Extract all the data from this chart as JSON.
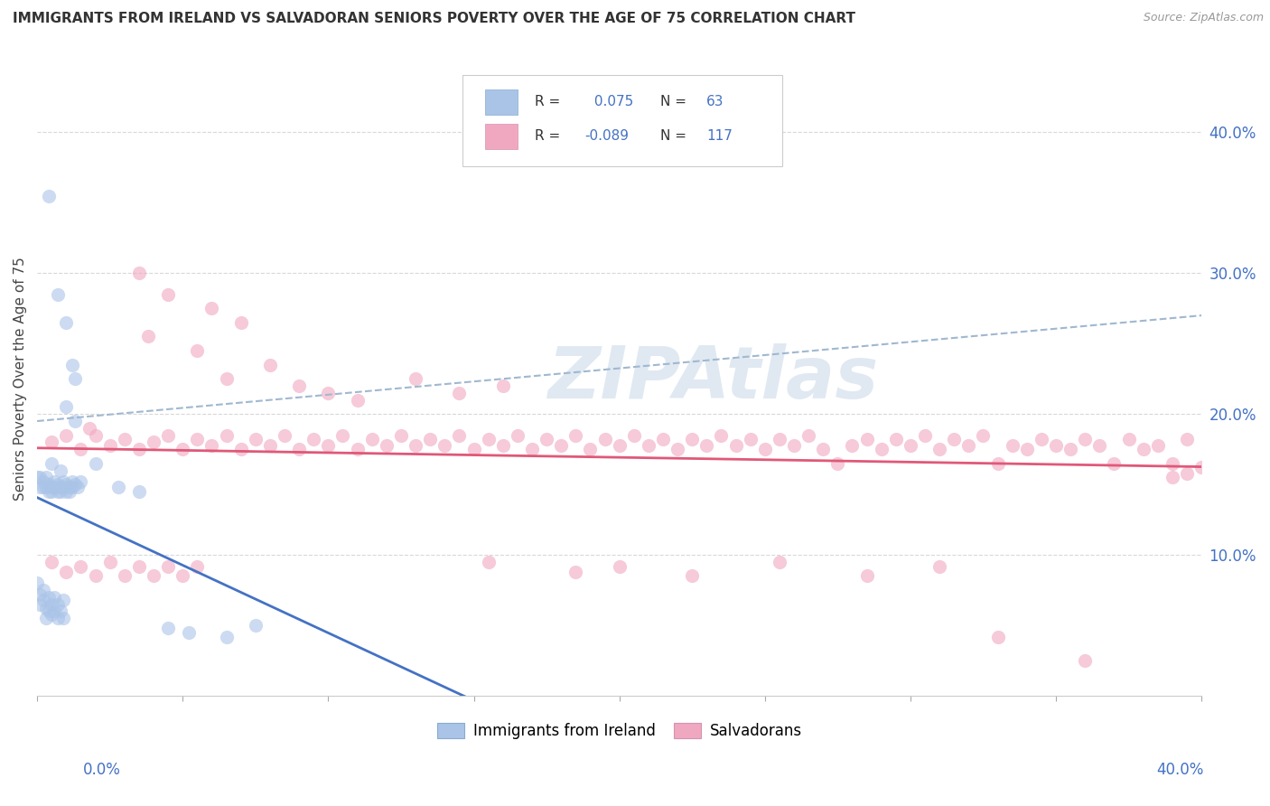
{
  "title": "IMMIGRANTS FROM IRELAND VS SALVADORAN SENIORS POVERTY OVER THE AGE OF 75 CORRELATION CHART",
  "source": "Source: ZipAtlas.com",
  "ylabel": "Seniors Poverty Over the Age of 75",
  "r_ireland": 0.075,
  "n_ireland": 63,
  "r_salvadoran": -0.089,
  "n_salvadoran": 117,
  "ireland_color": "#aac4e8",
  "salvadoran_color": "#f0a8c0",
  "ireland_trendline_color": "#4472c4",
  "salvadoran_trendline_color": "#e05878",
  "dashed_line_color": "#a0b8d0",
  "background_color": "#ffffff",
  "watermark_color": "#c8d8e8",
  "xlim": [
    0.0,
    0.4
  ],
  "ylim": [
    0.0,
    0.45
  ],
  "ytick_vals": [
    0.1,
    0.2,
    0.3,
    0.4
  ],
  "figsize": [
    14.06,
    8.92
  ],
  "dpi": 100
}
